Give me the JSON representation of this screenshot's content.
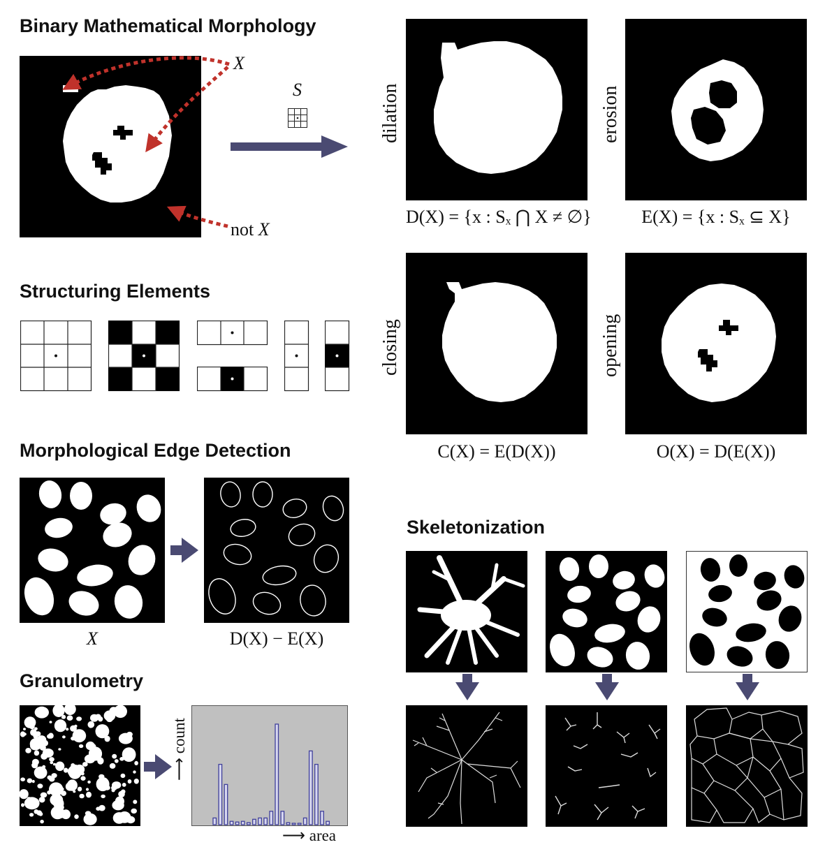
{
  "headings": {
    "binary": "Binary Mathematical Morphology",
    "structuring": "Structuring Elements",
    "edge": "Morphological Edge Detection",
    "granulometry": "Granulometry",
    "skeleton": "Skeletonization"
  },
  "binary_panel": {
    "x_label": "X",
    "not_label": "not",
    "not_var": "X",
    "s_label": "S"
  },
  "operations": {
    "dilation": {
      "label": "dilation",
      "formula": "D(X) = {x : Sₓ ⋂ X ≠ ∅}"
    },
    "erosion": {
      "label": "erosion",
      "formula": "E(X) = {x : Sₓ ⊆ X}"
    },
    "closing": {
      "label": "closing",
      "formula": "C(X) = E(D(X))"
    },
    "opening": {
      "label": "opening",
      "formula": "O(X) = D(E(X))"
    }
  },
  "edge": {
    "left_caption": "X",
    "right_caption": "D(X) − E(X)"
  },
  "granulometry": {
    "count_label": "count",
    "area_label": "area",
    "hist_values": [
      1,
      9,
      6,
      0.5,
      0.4,
      0.5,
      0.3,
      0.8,
      1,
      1,
      2,
      15,
      2,
      0.3,
      0.2,
      0.2,
      1,
      11,
      9,
      2,
      0.5
    ]
  },
  "colors": {
    "arrow_red": "#c0322b",
    "arrow_blue": "#4a4a72",
    "hist_bg": "#c0c0c0",
    "hist_bar": "#3f3f9a"
  }
}
